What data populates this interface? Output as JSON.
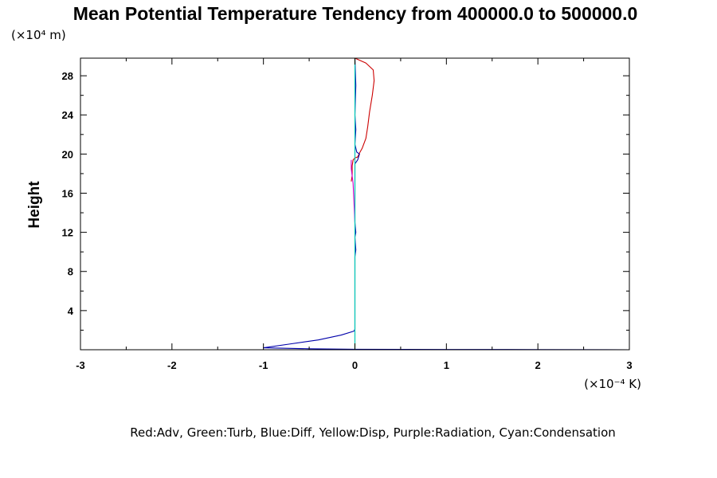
{
  "chart_data": {
    "type": "line",
    "title": "Mean Potential Temperature Tendency from 400000.0 to 500000.0",
    "ylabel": "Height",
    "y_unit": "(×10⁴ m)",
    "x_unit": "(×10⁻⁴ K)",
    "xlim": [
      -3,
      3
    ],
    "ylim": [
      0,
      29.8
    ],
    "x_ticks": [
      -3,
      -2,
      -1,
      0,
      1,
      2,
      3
    ],
    "x_tick_labels": [
      "-3",
      "-2",
      "-1",
      "0",
      "1",
      "2",
      "3"
    ],
    "y_ticks": [
      4,
      8,
      12,
      16,
      20,
      24,
      28
    ],
    "y_tick_labels": [
      "4",
      "8",
      "12",
      "16",
      "20",
      "24",
      "28"
    ],
    "legend_text": "Red:Adv, Green:Turb, Blue:Diff, Yellow:Disp, Purple:Radiation, Cyan:Condensation",
    "series": [
      {
        "name": "Adv",
        "color": "#cc0000",
        "points": [
          [
            0.0,
            29.8
          ],
          [
            0.12,
            29.3
          ],
          [
            0.2,
            28.6
          ],
          [
            0.21,
            27.5
          ],
          [
            0.19,
            26.0
          ],
          [
            0.16,
            24.3
          ],
          [
            0.14,
            22.8
          ],
          [
            0.12,
            21.6
          ],
          [
            0.08,
            20.6
          ],
          [
            0.05,
            20.1
          ],
          [
            0.03,
            19.7
          ],
          [
            0.0,
            19.6
          ],
          [
            -0.02,
            19.4
          ],
          [
            -0.03,
            18.8
          ],
          [
            -0.03,
            17.8
          ],
          [
            -0.04,
            17.2
          ]
        ]
      },
      {
        "name": "Turb",
        "color": "#00aa00",
        "points": [
          [
            0.0,
            29.8
          ],
          [
            0.0,
            0.0
          ]
        ]
      },
      {
        "name": "Diff",
        "color": "#0000aa",
        "points": [
          [
            0.0,
            29.8
          ],
          [
            0.01,
            27.0
          ],
          [
            0.0,
            24.0
          ],
          [
            0.01,
            22.5
          ],
          [
            0.0,
            21.0
          ],
          [
            0.02,
            20.2
          ],
          [
            0.05,
            20.0
          ],
          [
            0.03,
            19.4
          ],
          [
            0.0,
            19.0
          ],
          [
            0.0,
            13.0
          ],
          [
            0.01,
            12.0
          ],
          [
            0.0,
            11.5
          ],
          [
            0.01,
            10.2
          ],
          [
            0.0,
            9.5
          ],
          [
            0.0,
            2.1
          ],
          [
            -0.01,
            1.9
          ],
          [
            -0.15,
            1.5
          ],
          [
            -0.4,
            1.0
          ],
          [
            -0.7,
            0.6
          ],
          [
            -1.0,
            0.2
          ],
          [
            -0.5,
            0.1
          ],
          [
            0.0,
            0.05
          ],
          [
            1.0,
            0.03
          ],
          [
            2.0,
            0.02
          ],
          [
            3.0,
            0.0
          ]
        ]
      },
      {
        "name": "Disp",
        "color": "#ffff00",
        "points": [
          [
            0.0,
            29.8
          ],
          [
            0.0,
            0.0
          ]
        ]
      },
      {
        "name": "Radiation",
        "color": "#cc00cc",
        "points": [
          [
            -0.04,
            19.4
          ],
          [
            -0.04,
            18.5
          ],
          [
            -0.02,
            17.0
          ],
          [
            -0.01,
            15.0
          ],
          [
            0.0,
            13.0
          ]
        ]
      },
      {
        "name": "Condensation",
        "color": "#00cccc",
        "points": [
          [
            0.0,
            29.8
          ],
          [
            0.0,
            0.0
          ]
        ]
      }
    ]
  }
}
